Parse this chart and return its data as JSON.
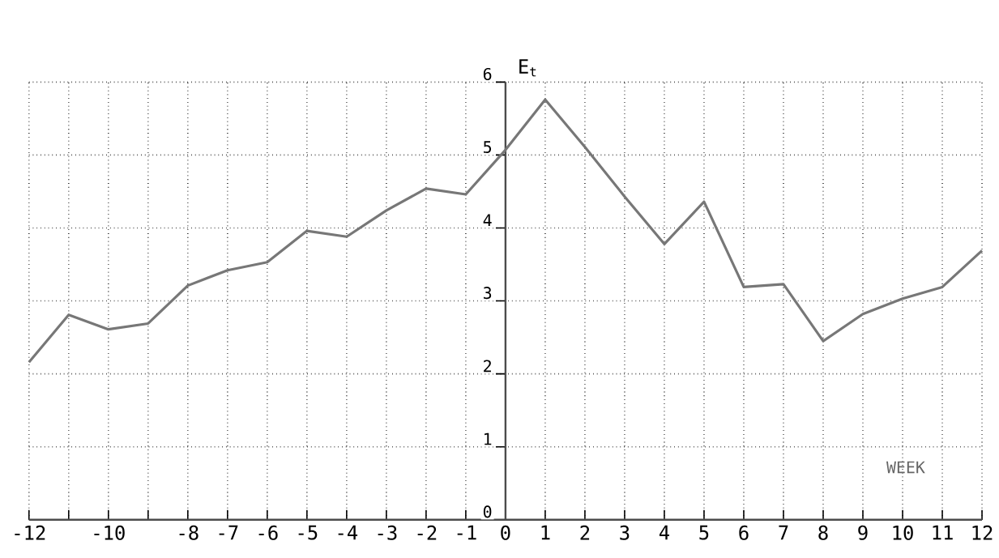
{
  "chart_data": {
    "type": "line",
    "ylabel": "E$_{t}$",
    "xlabel": "WEEK",
    "x": [
      -12,
      -11,
      -10,
      -9,
      -8,
      -7,
      -6,
      -5,
      -4,
      -3,
      -2,
      -1,
      0,
      1,
      2,
      3,
      4,
      5,
      6,
      7,
      8,
      9,
      10,
      11,
      12
    ],
    "values": [
      2.16,
      2.81,
      2.61,
      2.69,
      3.21,
      3.42,
      3.53,
      3.96,
      3.88,
      4.24,
      4.54,
      4.46,
      5.07,
      5.76,
      5.11,
      4.43,
      3.78,
      4.36,
      3.19,
      3.23,
      2.45,
      2.82,
      3.03,
      3.19,
      3.69
    ],
    "color": "#777777",
    "xlim": [
      -12,
      12
    ],
    "ylim": [
      0,
      6
    ],
    "xticks": [
      -12,
      {
        "value": -11,
        "label": null
      },
      -10,
      {
        "value": -9,
        "label": null
      },
      -8,
      -7,
      -6,
      -5,
      -4,
      -3,
      -2,
      -1,
      0,
      1,
      2,
      3,
      4,
      5,
      6,
      7,
      8,
      9,
      10,
      11,
      12
    ],
    "yticks": [
      0,
      1,
      2,
      3,
      4,
      5,
      6
    ],
    "grid": true
  }
}
